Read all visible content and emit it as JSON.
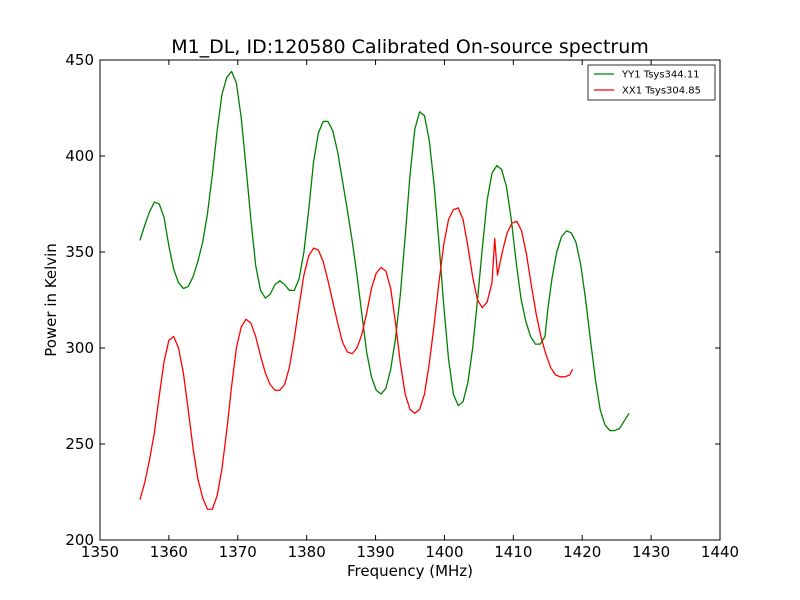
{
  "chart_data": {
    "type": "line",
    "title": "M1_DL, ID:120580 Calibrated On-source spectrum",
    "xlabel": "Frequency (MHz)",
    "ylabel": "Power in Kelvin",
    "xlim": [
      1350,
      1440
    ],
    "ylim": [
      200,
      450
    ],
    "xticks": [
      1350,
      1360,
      1370,
      1380,
      1390,
      1400,
      1410,
      1420,
      1430,
      1440
    ],
    "yticks": [
      200,
      250,
      300,
      350,
      400,
      450
    ],
    "grid": false,
    "legend_position": "top-right",
    "series": [
      {
        "name": "YY1 Tsys344.11",
        "color": "#008000",
        "points": [
          [
            1355.8,
            356
          ],
          [
            1356.5,
            364
          ],
          [
            1357.2,
            371
          ],
          [
            1357.9,
            376
          ],
          [
            1358.6,
            375
          ],
          [
            1359.3,
            368
          ],
          [
            1360.0,
            353
          ],
          [
            1360.7,
            341
          ],
          [
            1361.4,
            334
          ],
          [
            1362.1,
            331
          ],
          [
            1362.8,
            332
          ],
          [
            1363.5,
            337
          ],
          [
            1364.2,
            345
          ],
          [
            1364.9,
            355
          ],
          [
            1365.6,
            370
          ],
          [
            1366.3,
            390
          ],
          [
            1367.0,
            413
          ],
          [
            1367.7,
            432
          ],
          [
            1368.4,
            441
          ],
          [
            1369.1,
            444
          ],
          [
            1369.8,
            438
          ],
          [
            1370.5,
            420
          ],
          [
            1371.2,
            394
          ],
          [
            1371.9,
            367
          ],
          [
            1372.6,
            343
          ],
          [
            1373.3,
            330
          ],
          [
            1374.0,
            326
          ],
          [
            1374.7,
            328
          ],
          [
            1375.4,
            333
          ],
          [
            1376.1,
            335
          ],
          [
            1376.8,
            333
          ],
          [
            1377.5,
            330
          ],
          [
            1378.2,
            330
          ],
          [
            1378.9,
            336
          ],
          [
            1379.6,
            350
          ],
          [
            1380.3,
            372
          ],
          [
            1381.0,
            397
          ],
          [
            1381.7,
            412
          ],
          [
            1382.4,
            418
          ],
          [
            1383.1,
            418
          ],
          [
            1383.8,
            413
          ],
          [
            1384.5,
            402
          ],
          [
            1385.2,
            387
          ],
          [
            1385.9,
            372
          ],
          [
            1386.6,
            356
          ],
          [
            1387.3,
            338
          ],
          [
            1388.0,
            318
          ],
          [
            1388.7,
            298
          ],
          [
            1389.4,
            285
          ],
          [
            1390.1,
            278
          ],
          [
            1390.8,
            276
          ],
          [
            1391.5,
            279
          ],
          [
            1392.2,
            289
          ],
          [
            1392.9,
            305
          ],
          [
            1393.6,
            328
          ],
          [
            1394.3,
            358
          ],
          [
            1395.0,
            390
          ],
          [
            1395.7,
            414
          ],
          [
            1396.4,
            423
          ],
          [
            1397.1,
            421
          ],
          [
            1397.8,
            408
          ],
          [
            1398.5,
            385
          ],
          [
            1399.2,
            355
          ],
          [
            1399.9,
            322
          ],
          [
            1400.6,
            294
          ],
          [
            1401.3,
            276
          ],
          [
            1402.0,
            270
          ],
          [
            1402.7,
            272
          ],
          [
            1403.4,
            282
          ],
          [
            1404.1,
            300
          ],
          [
            1404.8,
            325
          ],
          [
            1405.5,
            352
          ],
          [
            1406.2,
            377
          ],
          [
            1406.9,
            391
          ],
          [
            1407.6,
            395
          ],
          [
            1408.3,
            393
          ],
          [
            1409.0,
            384
          ],
          [
            1409.7,
            367
          ],
          [
            1410.4,
            345
          ],
          [
            1411.1,
            326
          ],
          [
            1411.8,
            314
          ],
          [
            1412.5,
            306
          ],
          [
            1413.2,
            302
          ],
          [
            1413.9,
            302
          ],
          [
            1414.6,
            306
          ],
          [
            1415.0,
            320
          ],
          [
            1415.6,
            336
          ],
          [
            1416.3,
            350
          ],
          [
            1417.0,
            358
          ],
          [
            1417.7,
            361
          ],
          [
            1418.4,
            360
          ],
          [
            1419.1,
            355
          ],
          [
            1419.8,
            343
          ],
          [
            1420.5,
            325
          ],
          [
            1421.2,
            304
          ],
          [
            1421.9,
            284
          ],
          [
            1422.6,
            268
          ],
          [
            1423.3,
            260
          ],
          [
            1424.0,
            257
          ],
          [
            1424.7,
            257
          ],
          [
            1425.4,
            258
          ],
          [
            1426.1,
            262
          ],
          [
            1426.8,
            266
          ]
        ]
      },
      {
        "name": "XX1 Tsys304.85",
        "color": "#ff0000",
        "points": [
          [
            1355.8,
            221
          ],
          [
            1356.5,
            230
          ],
          [
            1357.2,
            242
          ],
          [
            1357.9,
            256
          ],
          [
            1358.6,
            275
          ],
          [
            1359.3,
            293
          ],
          [
            1360.0,
            304
          ],
          [
            1360.7,
            306
          ],
          [
            1361.4,
            300
          ],
          [
            1362.1,
            287
          ],
          [
            1362.8,
            268
          ],
          [
            1363.5,
            248
          ],
          [
            1364.2,
            232
          ],
          [
            1364.9,
            222
          ],
          [
            1365.6,
            216
          ],
          [
            1366.3,
            216
          ],
          [
            1367.0,
            223
          ],
          [
            1367.7,
            237
          ],
          [
            1368.4,
            257
          ],
          [
            1369.1,
            280
          ],
          [
            1369.8,
            300
          ],
          [
            1370.5,
            311
          ],
          [
            1371.2,
            315
          ],
          [
            1371.9,
            313
          ],
          [
            1372.6,
            306
          ],
          [
            1373.3,
            296
          ],
          [
            1374.0,
            287
          ],
          [
            1374.7,
            281
          ],
          [
            1375.4,
            278
          ],
          [
            1376.1,
            278
          ],
          [
            1376.8,
            281
          ],
          [
            1377.5,
            290
          ],
          [
            1378.2,
            305
          ],
          [
            1378.9,
            322
          ],
          [
            1379.6,
            338
          ],
          [
            1380.3,
            348
          ],
          [
            1381.0,
            352
          ],
          [
            1381.7,
            351
          ],
          [
            1382.4,
            345
          ],
          [
            1383.1,
            335
          ],
          [
            1383.8,
            324
          ],
          [
            1384.5,
            313
          ],
          [
            1385.2,
            303
          ],
          [
            1385.9,
            298
          ],
          [
            1386.6,
            297
          ],
          [
            1387.3,
            300
          ],
          [
            1388.0,
            307
          ],
          [
            1388.7,
            318
          ],
          [
            1389.4,
            331
          ],
          [
            1390.1,
            339
          ],
          [
            1390.8,
            342
          ],
          [
            1391.5,
            340
          ],
          [
            1392.2,
            331
          ],
          [
            1392.9,
            313
          ],
          [
            1393.6,
            292
          ],
          [
            1394.3,
            276
          ],
          [
            1395.0,
            268
          ],
          [
            1395.7,
            266
          ],
          [
            1396.4,
            268
          ],
          [
            1397.1,
            276
          ],
          [
            1397.8,
            292
          ],
          [
            1398.5,
            312
          ],
          [
            1399.2,
            334
          ],
          [
            1399.9,
            354
          ],
          [
            1400.6,
            367
          ],
          [
            1401.3,
            372
          ],
          [
            1402.0,
            373
          ],
          [
            1402.7,
            367
          ],
          [
            1403.4,
            353
          ],
          [
            1404.1,
            337
          ],
          [
            1404.8,
            325
          ],
          [
            1405.5,
            321
          ],
          [
            1406.2,
            324
          ],
          [
            1406.9,
            334
          ],
          [
            1407.3,
            357
          ],
          [
            1407.7,
            338
          ],
          [
            1408.4,
            350
          ],
          [
            1409.1,
            360
          ],
          [
            1409.8,
            365
          ],
          [
            1410.5,
            366
          ],
          [
            1411.2,
            361
          ],
          [
            1411.9,
            349
          ],
          [
            1412.6,
            333
          ],
          [
            1413.3,
            318
          ],
          [
            1414.0,
            306
          ],
          [
            1414.7,
            297
          ],
          [
            1415.4,
            290
          ],
          [
            1416.1,
            286
          ],
          [
            1416.8,
            285
          ],
          [
            1417.5,
            285
          ],
          [
            1418.2,
            286
          ],
          [
            1418.6,
            289
          ]
        ]
      }
    ]
  }
}
